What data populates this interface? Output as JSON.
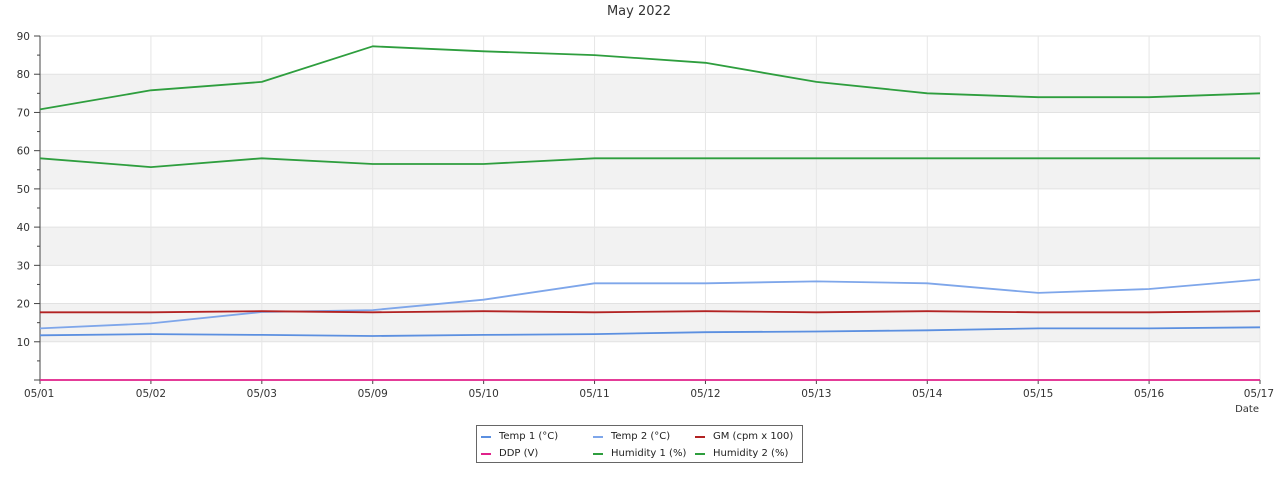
{
  "chart_data": {
    "type": "line",
    "title": "May 2022",
    "xlabel": "Date",
    "ylabel": "",
    "ylim": [
      0,
      90
    ],
    "yticks": [
      10,
      20,
      30,
      40,
      50,
      60,
      70,
      80,
      90
    ],
    "categories": [
      "05/01",
      "05/02",
      "05/03",
      "05/09",
      "05/10",
      "05/11",
      "05/12",
      "05/13",
      "05/14",
      "05/15",
      "05/16",
      "05/17"
    ],
    "grid": true,
    "banded_background": true,
    "legend_position": "bottom-center",
    "series": [
      {
        "name": "Temp 1 (°C)",
        "color": "#5b8fe0",
        "values": [
          11.7,
          12.0,
          11.8,
          11.5,
          11.8,
          12.0,
          12.5,
          12.7,
          13.0,
          13.5,
          13.5,
          13.8
        ]
      },
      {
        "name": "Temp 2 (°C)",
        "color": "#7ea6ea",
        "values": [
          13.5,
          14.8,
          17.8,
          18.3,
          21.0,
          25.3,
          25.3,
          25.8,
          25.3,
          22.8,
          23.8,
          26.3
        ]
      },
      {
        "name": "GM (cpm x 100)",
        "color": "#b22222",
        "values": [
          17.7,
          17.7,
          18.0,
          17.7,
          18.0,
          17.7,
          18.0,
          17.7,
          18.0,
          17.7,
          17.7,
          18.0
        ]
      },
      {
        "name": "DDP (V)",
        "color": "#e0218a",
        "values": [
          0,
          0,
          0,
          0,
          0,
          0,
          0,
          0,
          0,
          0,
          0,
          0
        ]
      },
      {
        "name": "Humidity 1 (%)",
        "color": "#2e9e3e",
        "values": [
          58.0,
          55.7,
          58.0,
          56.5,
          56.5,
          58.0,
          58.0,
          58.0,
          58.0,
          58.0,
          58.0,
          58.0
        ]
      },
      {
        "name": "Humidity 2 (%)",
        "color": "#2e9e3e",
        "values": [
          70.8,
          75.8,
          78.0,
          87.3,
          86.0,
          85.0,
          83.0,
          78.0,
          75.0,
          74.0,
          74.0,
          75.0
        ]
      }
    ]
  }
}
